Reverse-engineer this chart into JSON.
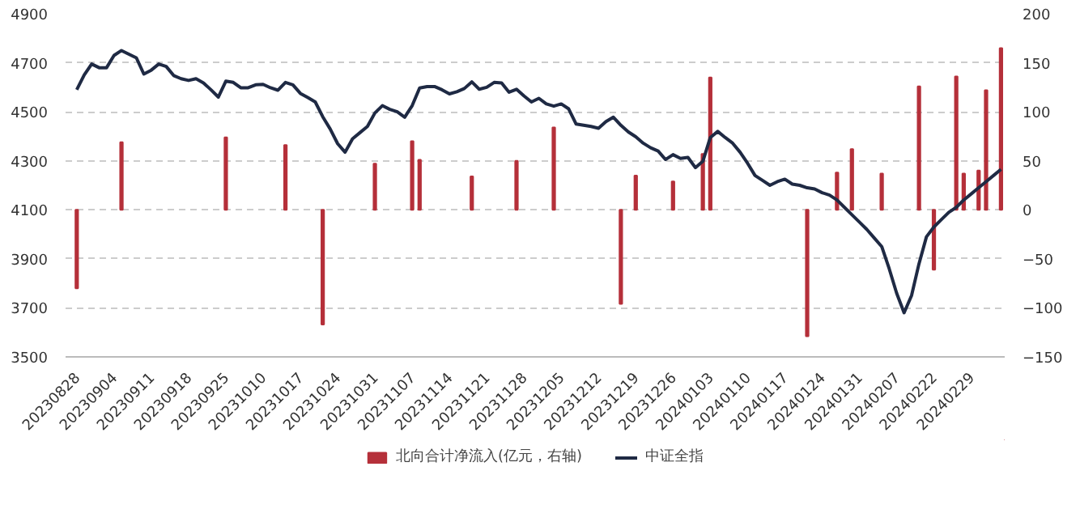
{
  "chart_data": {
    "type": "line",
    "categories": [
      "20230828",
      null,
      null,
      null,
      null,
      "20230904",
      null,
      null,
      null,
      null,
      "20230911",
      null,
      null,
      null,
      null,
      "20230918",
      null,
      null,
      null,
      null,
      "20230925",
      null,
      null,
      null,
      null,
      "20231010",
      null,
      null,
      null,
      null,
      "20231017",
      null,
      null,
      null,
      null,
      "20231024",
      null,
      null,
      null,
      null,
      "20231031",
      null,
      null,
      null,
      null,
      "20231107",
      null,
      null,
      null,
      null,
      "20231114",
      null,
      null,
      null,
      null,
      "20231121",
      null,
      null,
      null,
      null,
      "20231128",
      null,
      null,
      null,
      null,
      "20231205",
      null,
      null,
      null,
      null,
      "20231212",
      null,
      null,
      null,
      null,
      "20231219",
      null,
      null,
      null,
      null,
      "20231226",
      null,
      null,
      null,
      null,
      "20240103",
      null,
      null,
      null,
      null,
      "20240110",
      null,
      null,
      null,
      null,
      "20240117",
      null,
      null,
      null,
      null,
      "20240124",
      null,
      null,
      null,
      null,
      "20240131",
      null,
      null,
      null,
      null,
      "20240207",
      null,
      null,
      null,
      null,
      "20240222",
      null,
      null,
      null,
      null,
      "20240229",
      null,
      null,
      null,
      null
    ],
    "series": [
      {
        "name": "北向合计净流入(亿元，右轴)",
        "type": "bar",
        "axis": "y2",
        "color": "#b5303a",
        "values": [
          -80,
          null,
          null,
          null,
          null,
          null,
          69,
          null,
          null,
          null,
          null,
          null,
          null,
          null,
          null,
          null,
          null,
          null,
          null,
          null,
          74,
          null,
          null,
          null,
          null,
          null,
          null,
          null,
          66,
          null,
          null,
          null,
          null,
          -117,
          null,
          null,
          null,
          null,
          null,
          null,
          47,
          null,
          null,
          null,
          null,
          70,
          51,
          null,
          null,
          null,
          null,
          null,
          null,
          34,
          null,
          null,
          null,
          null,
          null,
          50,
          null,
          null,
          null,
          null,
          84,
          null,
          null,
          null,
          null,
          null,
          null,
          null,
          null,
          -96,
          null,
          35,
          null,
          null,
          null,
          null,
          29,
          null,
          null,
          null,
          57,
          135,
          null,
          null,
          null,
          null,
          null,
          null,
          null,
          null,
          null,
          null,
          null,
          null,
          -129,
          null,
          null,
          null,
          38,
          null,
          62,
          null,
          null,
          null,
          37,
          null,
          null,
          null,
          null,
          126,
          null,
          -61,
          null,
          null,
          136,
          37,
          null,
          40,
          122,
          null,
          165
        ]
      },
      {
        "name": "中证全指",
        "color": "#1f2a44",
        "values": [
          4590,
          4650,
          4695,
          4680,
          4680,
          4730,
          4750,
          4735,
          4720,
          4654,
          4670,
          4695,
          4685,
          4648,
          4635,
          4628,
          4635,
          4618,
          4590,
          4560,
          4625,
          4620,
          4598,
          4598,
          4610,
          4612,
          4598,
          4588,
          4620,
          4610,
          4575,
          4558,
          4540,
          4480,
          4430,
          4370,
          4335,
          4390,
          4415,
          4440,
          4495,
          4525,
          4510,
          4500,
          4478,
          4525,
          4597,
          4603,
          4603,
          4590,
          4573,
          4582,
          4595,
          4622,
          4592,
          4600,
          4620,
          4618,
          4580,
          4592,
          4565,
          4540,
          4555,
          4532,
          4523,
          4532,
          4512,
          4450,
          4445,
          4440,
          4433,
          4460,
          4478,
          4445,
          4418,
          4398,
          4372,
          4353,
          4340,
          4305,
          4325,
          4310,
          4314,
          4272,
          4298,
          4395,
          4420,
          4395,
          4372,
          4335,
          4290,
          4240,
          4220,
          4200,
          4215,
          4225,
          4205,
          4200,
          4190,
          4185,
          4170,
          4160,
          4140,
          4110,
          4080,
          4050,
          4020,
          3985,
          3950,
          3860,
          3760,
          3680,
          3750,
          3880,
          3990,
          4030,
          4060,
          4090,
          4110,
          4140,
          4165,
          4190,
          4215,
          4240,
          4265
        ]
      }
    ],
    "ylim": [
      3500,
      4900
    ],
    "yticks": [
      3500,
      3700,
      3900,
      4100,
      4300,
      4500,
      4700,
      4900
    ],
    "y2lim": [
      -150,
      200
    ],
    "y2ticks": [
      -150,
      -100,
      -50,
      0,
      50,
      100,
      150,
      200
    ],
    "grid": "y",
    "legend": "bottom",
    "line_style": "solid"
  }
}
